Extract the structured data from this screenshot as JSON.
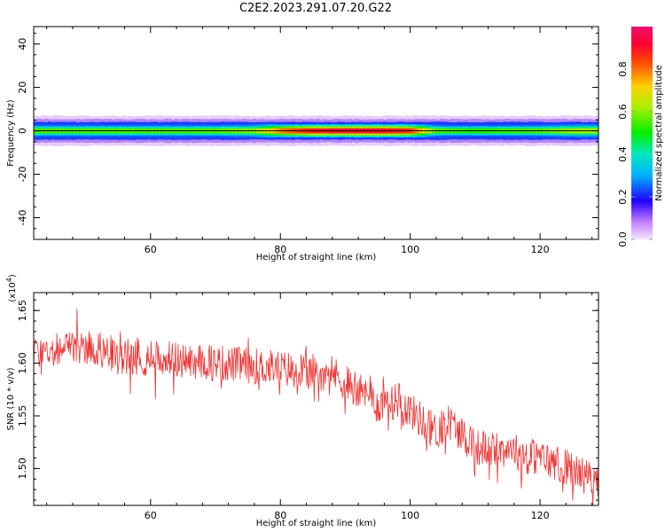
{
  "title": "C2E2.2023.291.07.20.G22",
  "chart_data": [
    {
      "type": "heatmap",
      "xlabel": "Height of straight line (km)",
      "ylabel": "Frequency (Hz)",
      "xlim": [
        42,
        129
      ],
      "ylim": [
        -50,
        48
      ],
      "x_ticks": [
        "60",
        "80",
        "100",
        "120"
      ],
      "y_ticks": [
        "40",
        "20",
        "0",
        "-20",
        "-40"
      ],
      "colorbar": {
        "label": "Normalized spectral amplitude",
        "range": [
          0,
          1
        ],
        "ticks": [
          "0.0",
          "0.2",
          "0.4",
          "0.6",
          "0.8"
        ]
      },
      "band": {
        "center_hz": 0,
        "halfwidth_hz_edge": 3,
        "profile": [
          {
            "x": 42,
            "amp": 0.55
          },
          {
            "x": 50,
            "amp": 0.55
          },
          {
            "x": 60,
            "amp": 0.55
          },
          {
            "x": 70,
            "amp": 0.55
          },
          {
            "x": 76,
            "amp": 0.6
          },
          {
            "x": 80,
            "amp": 0.78
          },
          {
            "x": 85,
            "amp": 0.88
          },
          {
            "x": 90,
            "amp": 0.9
          },
          {
            "x": 95,
            "amp": 0.9
          },
          {
            "x": 100,
            "amp": 0.85
          },
          {
            "x": 104,
            "amp": 0.55
          },
          {
            "x": 110,
            "amp": 0.52
          },
          {
            "x": 120,
            "amp": 0.55
          },
          {
            "x": 126,
            "amp": 0.62
          },
          {
            "x": 129,
            "amp": 0.6
          }
        ]
      }
    },
    {
      "type": "line",
      "xlabel": "Height of straight line (km)",
      "ylabel": "SNR (10 * v/v)",
      "y_exponent_label": "(x10",
      "y_exponent_power": "4",
      "y_exponent_close": ")",
      "xlim": [
        42,
        129
      ],
      "ylim": [
        1.465,
        1.667
      ],
      "x_ticks": [
        "60",
        "80",
        "100",
        "120"
      ],
      "y_ticks": [
        "1.65",
        "1.60",
        "1.55",
        "1.50"
      ],
      "color": "#ee3333",
      "trend": [
        {
          "x": 42,
          "y": 1.61
        },
        {
          "x": 50,
          "y": 1.617
        },
        {
          "x": 55,
          "y": 1.607
        },
        {
          "x": 60,
          "y": 1.605
        },
        {
          "x": 65,
          "y": 1.603
        },
        {
          "x": 70,
          "y": 1.6
        },
        {
          "x": 75,
          "y": 1.598
        },
        {
          "x": 80,
          "y": 1.595
        },
        {
          "x": 85,
          "y": 1.592
        },
        {
          "x": 88,
          "y": 1.59
        },
        {
          "x": 92,
          "y": 1.575
        },
        {
          "x": 95,
          "y": 1.56
        },
        {
          "x": 98,
          "y": 1.565
        },
        {
          "x": 100,
          "y": 1.555
        },
        {
          "x": 104,
          "y": 1.535
        },
        {
          "x": 106,
          "y": 1.545
        },
        {
          "x": 110,
          "y": 1.52
        },
        {
          "x": 115,
          "y": 1.518
        },
        {
          "x": 120,
          "y": 1.51
        },
        {
          "x": 125,
          "y": 1.5
        },
        {
          "x": 129,
          "y": 1.485
        }
      ]
    }
  ]
}
